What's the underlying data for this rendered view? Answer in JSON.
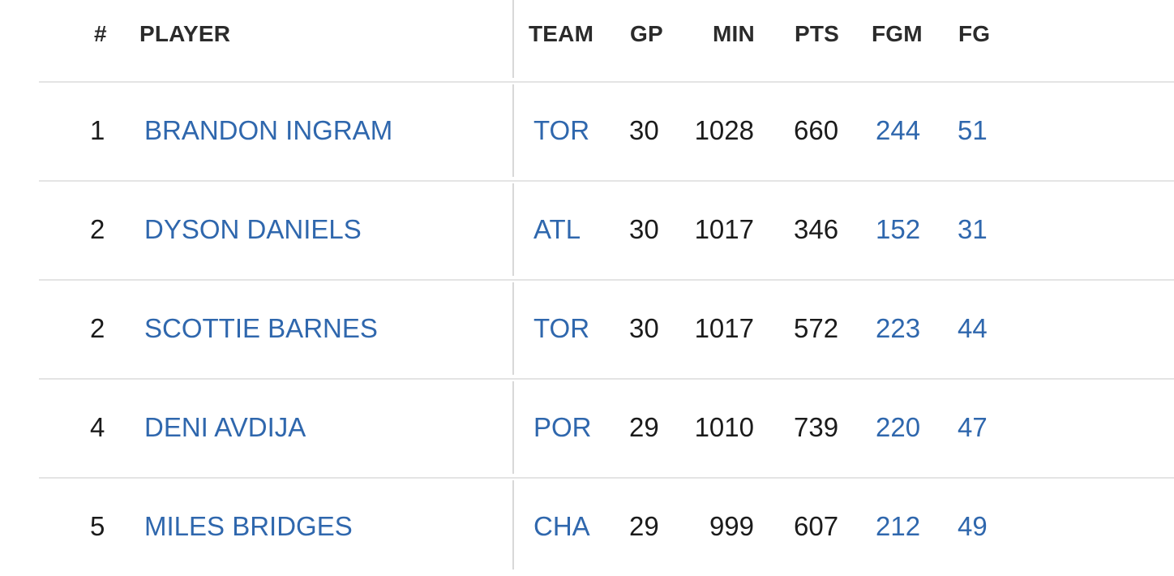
{
  "headers": {
    "rank": "#",
    "player": "PLAYER",
    "team": "TEAM",
    "gp": "GP",
    "min": "MIN",
    "pts": "PTS",
    "fgm": "FGM",
    "fga_partial": "FG"
  },
  "rows": [
    {
      "rank": "1",
      "player": "BRANDON INGRAM",
      "team": "TOR",
      "gp": "30",
      "min": "1028",
      "pts": "660",
      "fgm": "244",
      "fga_partial": "51"
    },
    {
      "rank": "2",
      "player": "DYSON DANIELS",
      "team": "ATL",
      "gp": "30",
      "min": "1017",
      "pts": "346",
      "fgm": "152",
      "fga_partial": "31"
    },
    {
      "rank": "2",
      "player": "SCOTTIE BARNES",
      "team": "TOR",
      "gp": "30",
      "min": "1017",
      "pts": "572",
      "fgm": "223",
      "fga_partial": "44"
    },
    {
      "rank": "4",
      "player": "DENI AVDIJA",
      "team": "POR",
      "gp": "29",
      "min": "1010",
      "pts": "739",
      "fgm": "220",
      "fga_partial": "47"
    },
    {
      "rank": "5",
      "player": "MILES BRIDGES",
      "team": "CHA",
      "gp": "29",
      "min": "999",
      "pts": "607",
      "fgm": "212",
      "fga_partial": "49"
    }
  ],
  "colors": {
    "link": "#2f67ad",
    "text": "#1b1b1b",
    "header": "#2b2b2b",
    "divider": "#e4e4e4"
  }
}
